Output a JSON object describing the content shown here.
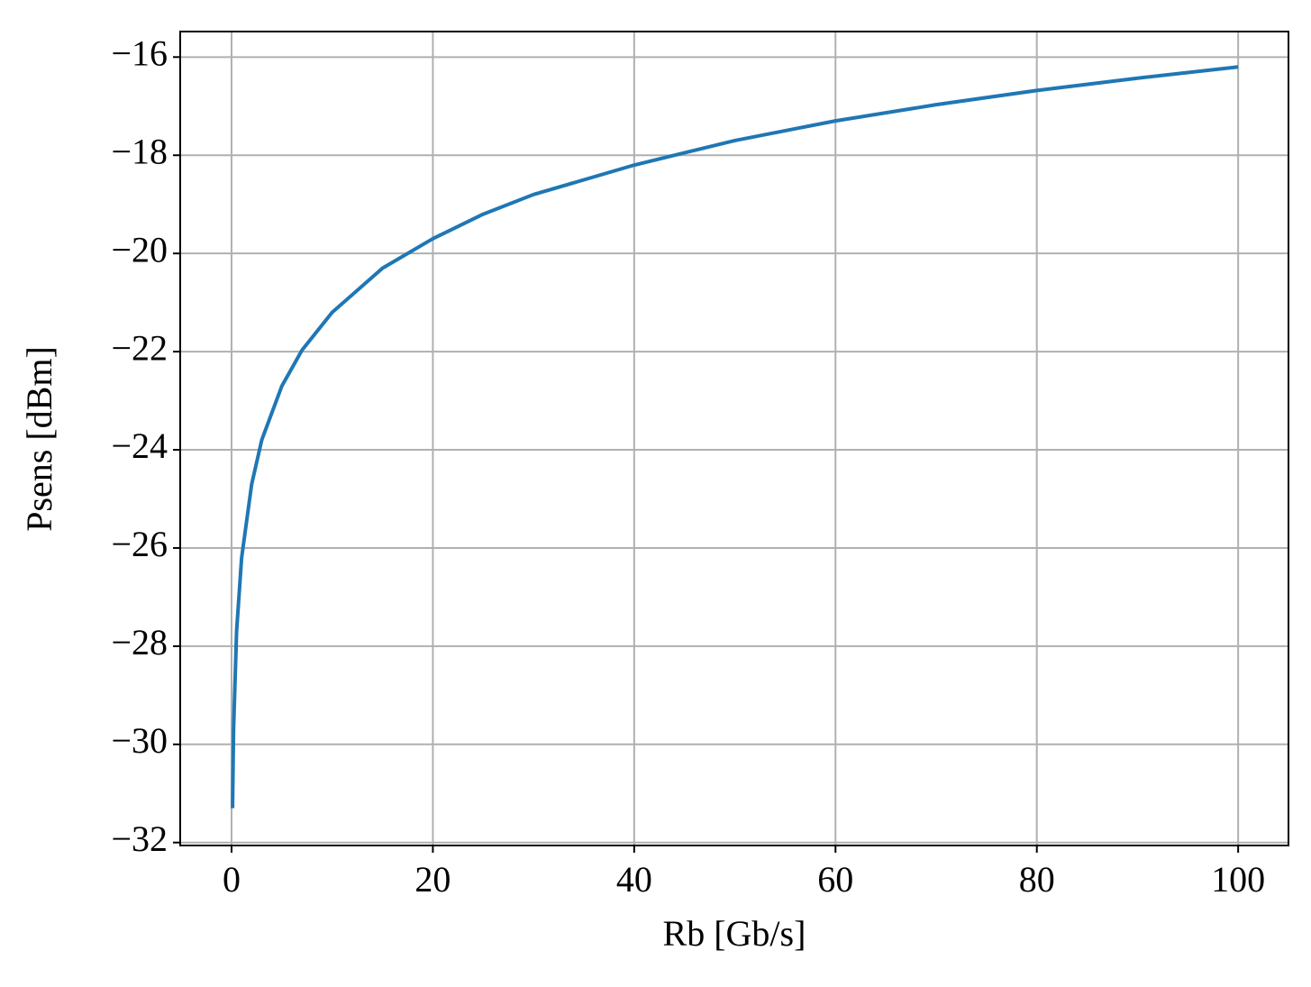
{
  "chart_data": {
    "type": "line",
    "xlabel": "Rb [Gb/s]",
    "ylabel": "Psens [dBm]",
    "x": [
      0.1,
      0.2,
      0.5,
      1,
      2,
      3,
      5,
      7,
      10,
      15,
      20,
      25,
      30,
      40,
      50,
      60,
      70,
      80,
      90,
      100
    ],
    "series": [
      {
        "color": "#1f77b4",
        "values": [
          -31.3,
          -29.7,
          -27.7,
          -26.2,
          -24.7,
          -23.8,
          -22.7,
          -21.97,
          -21.2,
          -20.3,
          -19.7,
          -19.2,
          -18.8,
          -18.2,
          -17.7,
          -17.3,
          -16.97,
          -16.68,
          -16.43,
          -16.2
        ]
      }
    ],
    "xlim": [
      -5.1,
      105
    ],
    "xticks": [
      0,
      20,
      40,
      60,
      80,
      100
    ],
    "ylim": [
      -32.06,
      -15.48
    ],
    "yticks": [
      {
        "value": -32,
        "label": "−32"
      },
      {
        "value": -30,
        "label": "−30"
      },
      {
        "value": -28,
        "label": "−28"
      },
      {
        "value": -26,
        "label": "−26"
      },
      {
        "value": -24,
        "label": "−24"
      },
      {
        "value": -22,
        "label": "−22"
      },
      {
        "value": -20,
        "label": "−20"
      },
      {
        "value": -18,
        "label": "−18"
      },
      {
        "value": -16,
        "label": "−16"
      }
    ],
    "grid": true
  }
}
